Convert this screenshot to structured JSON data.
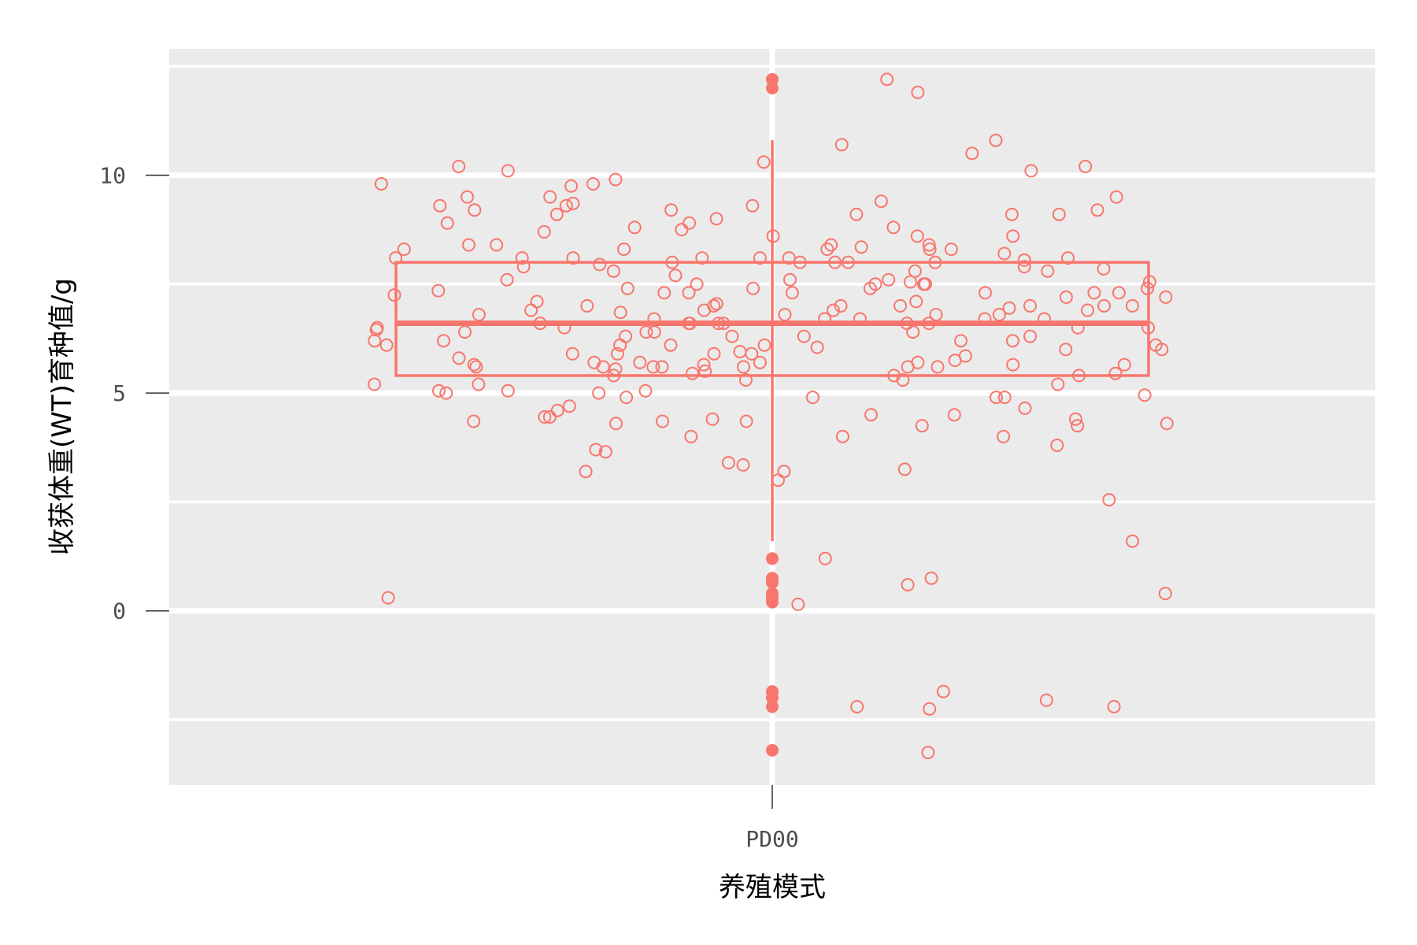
{
  "chart_data": {
    "type": "box",
    "title": "",
    "xlabel": "养殖模式",
    "ylabel": "收获体重(WT)育种值/g",
    "categories": [
      "PD00"
    ],
    "ylim": [
      -4.0,
      12.9
    ],
    "yticks": [
      0,
      5,
      10
    ],
    "grid": true,
    "legend": "none",
    "colors": {
      "series": "#f8766d",
      "panel": "#ebebeb",
      "grid": "#ffffff"
    },
    "box": {
      "category": "PD00",
      "q1": 5.4,
      "median": 6.6,
      "q3": 8.0,
      "whisker_low": 1.6,
      "whisker_high": 10.8,
      "outliers": [
        12.2,
        12.0,
        1.2,
        0.75,
        0.65,
        0.4,
        0.3,
        0.2,
        -1.85,
        -2.0,
        -2.2,
        -3.2
      ]
    },
    "jitter_values": [
      8.8,
      7.8,
      7.5,
      7.2,
      6.4,
      5.6,
      5.05,
      4.4,
      8.0,
      10.1,
      6.2,
      5.7,
      8.2,
      7.9,
      6.9,
      9.1,
      7.1,
      6.8,
      7.2,
      6.7,
      5.8,
      5.3,
      4.5,
      4.35,
      9.8,
      7.3,
      7.0,
      6.0,
      5.5,
      4.4,
      4.65,
      10.1,
      8.4,
      8.3,
      9.2,
      8.6,
      7.4,
      5.6,
      10.5,
      9.5,
      6.6,
      8.1,
      7.9,
      4.3,
      0.15,
      -2.05,
      -2.25,
      10.2,
      7.0,
      6.2,
      4.25,
      8.9,
      8.4,
      8.1,
      7.7,
      6.6,
      6.9,
      5.65,
      5.9,
      0.3,
      9.75,
      5.6,
      5.3,
      5.2,
      5.0,
      5.7,
      5.65,
      8.7,
      9.1,
      7.4,
      8.0,
      7.8,
      6.7,
      6.6,
      6.1,
      4.9,
      3.4,
      3.0,
      7.0,
      5.6,
      8.1,
      7.0,
      6.9,
      6.8,
      7.3,
      -2.2,
      9.8,
      9.4,
      7.6,
      7.3,
      5.65,
      5.7,
      3.7,
      4.0,
      0.4,
      10.3,
      8.1,
      6.7,
      0.6,
      9.1,
      8.3,
      7.5,
      5.05,
      9.5,
      9.3,
      6.5,
      6.3,
      6.2,
      5.9,
      5.2,
      4.6,
      8.6,
      7.5,
      7.0,
      6.5,
      7.4,
      6.8,
      6.3,
      4.9,
      4.3,
      4.0,
      3.8,
      9.9,
      6.2,
      9.35,
      7.3,
      12.2,
      11.9,
      6.6,
      5.7,
      5.4,
      7.85,
      7.8,
      5.65,
      1.2,
      6.6,
      7.55,
      6.6,
      4.9,
      8.6,
      6.7,
      6.1,
      9.3,
      8.8,
      6.4,
      6.3,
      4.95,
      8.3,
      3.2,
      7.0,
      6.95,
      6.3,
      5.9,
      9.3,
      5.2,
      5.4,
      5.05,
      6.45,
      9.1,
      8.75,
      8.9,
      9.2,
      9.5,
      8.4,
      7.3,
      5.6,
      0.75,
      5.6,
      4.45,
      4.35,
      2.55,
      6.85,
      5.0,
      6.5,
      6.4,
      6.1,
      4.45,
      4.7,
      8.0,
      6.5,
      5.9,
      5.75,
      5.4,
      8.05,
      7.95,
      8.1,
      8.3,
      7.6,
      7.5,
      7.1,
      7.0,
      6.8,
      6.7,
      7.25,
      4.35,
      6.1,
      5.95,
      5.6,
      -3.25,
      4.5,
      8.4,
      6.4,
      7.05,
      9.0,
      10.7,
      6.1,
      5.45,
      -2.2,
      8.35,
      4.0,
      4.25,
      3.2,
      8.3,
      5.45,
      6.6,
      7.3,
      7.55,
      8.1,
      8.1,
      8.0,
      7.6,
      6.9,
      3.65,
      1.6,
      -1.85,
      6.0,
      4.9,
      3.35,
      3.25,
      10.2,
      5.55,
      10.8,
      8.0,
      7.4,
      6.05,
      7.35,
      9.2,
      5.85
    ]
  }
}
